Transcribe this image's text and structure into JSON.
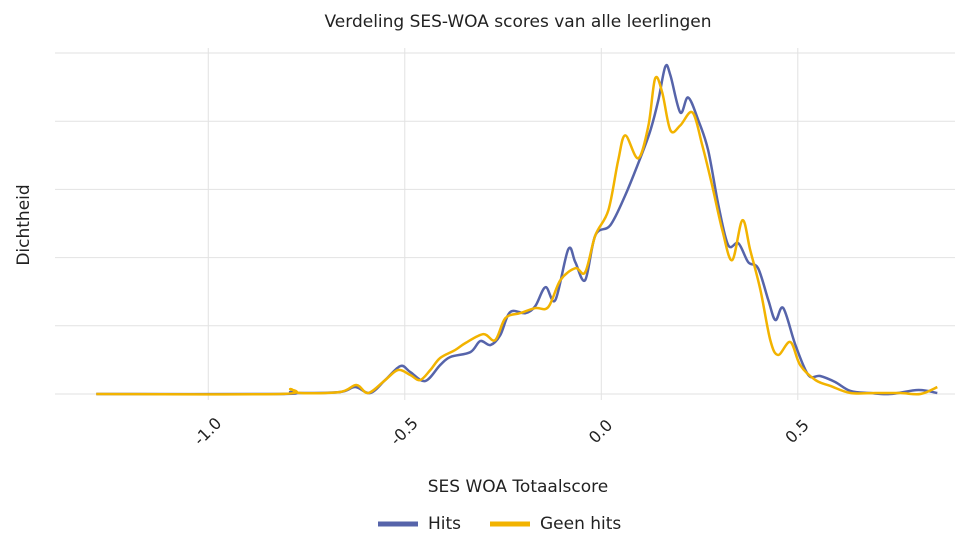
{
  "chart_data": {
    "type": "line",
    "title": "Verdeling SES-WOA scores van alle leerlingen",
    "x_label": "SES WOA Totaalscore",
    "y_label": "Dichtheid",
    "xlim": [
      -1.39,
      0.9
    ],
    "xticks": [
      {
        "value": -1.0,
        "label": "-1.0"
      },
      -0.5,
      {
        "value": 0.0,
        "label": "0.0"
      },
      0.5
    ],
    "ylim": [
      0,
      2.5
    ],
    "yticks": [
      0,
      0.5,
      1,
      1.5,
      2,
      2.5
    ],
    "grid": true,
    "legend": "bottom",
    "series": [
      {
        "name": "Hits",
        "color": "#5664aa",
        "x": [
          -1.285,
          -0.817,
          -0.791,
          -0.766,
          -0.664,
          -0.626,
          -0.588,
          -0.55,
          -0.511,
          -0.486,
          -0.448,
          -0.41,
          -0.384,
          -0.333,
          -0.308,
          -0.282,
          -0.257,
          -0.232,
          -0.193,
          -0.168,
          -0.142,
          -0.117,
          -0.084,
          -0.066,
          -0.041,
          -0.015,
          0.023,
          0.061,
          0.099,
          0.125,
          0.145,
          0.163,
          0.176,
          0.201,
          0.221,
          0.247,
          0.272,
          0.298,
          0.323,
          0.349,
          0.374,
          0.399,
          0.425,
          0.443,
          0.463,
          0.494,
          0.527,
          0.557,
          0.595,
          0.634,
          0.684,
          0.735,
          0.807,
          0.855
        ],
        "values": [
          0,
          0,
          0.015,
          0.007,
          0.015,
          0.051,
          0.007,
          0.102,
          0.205,
          0.161,
          0.095,
          0.212,
          0.271,
          0.307,
          0.388,
          0.359,
          0.432,
          0.6,
          0.593,
          0.644,
          0.783,
          0.688,
          1.061,
          0.966,
          0.835,
          1.164,
          1.237,
          1.457,
          1.728,
          1.933,
          2.152,
          2.401,
          2.335,
          2.064,
          2.174,
          2.006,
          1.786,
          1.384,
          1.091,
          1.105,
          0.966,
          0.922,
          0.688,
          0.542,
          0.63,
          0.359,
          0.139,
          0.132,
          0.088,
          0.022,
          0.007,
          0,
          0.029,
          0.007
        ]
      },
      {
        "name": "Geen hits",
        "color": "#f2b300",
        "x": [
          -1.285,
          -0.817,
          -0.791,
          -0.766,
          -0.664,
          -0.623,
          -0.593,
          -0.55,
          -0.517,
          -0.486,
          -0.461,
          -0.435,
          -0.41,
          -0.372,
          -0.346,
          -0.3,
          -0.27,
          -0.244,
          -0.206,
          -0.168,
          -0.135,
          -0.104,
          -0.066,
          -0.041,
          -0.015,
          0.018,
          0.043,
          0.061,
          0.094,
          0.12,
          0.137,
          0.155,
          0.176,
          0.201,
          0.232,
          0.257,
          0.282,
          0.308,
          0.333,
          0.359,
          0.379,
          0.405,
          0.43,
          0.45,
          0.481,
          0.506,
          0.545,
          0.583,
          0.634,
          0.697,
          0.761,
          0.812,
          0.855
        ],
        "values": [
          0,
          0,
          0.037,
          0.007,
          0.015,
          0.066,
          0.007,
          0.102,
          0.176,
          0.139,
          0.102,
          0.176,
          0.264,
          0.322,
          0.373,
          0.439,
          0.395,
          0.556,
          0.593,
          0.63,
          0.637,
          0.835,
          0.922,
          0.893,
          1.164,
          1.347,
          1.713,
          1.896,
          1.728,
          1.969,
          2.313,
          2.211,
          1.933,
          1.969,
          2.064,
          1.823,
          1.53,
          1.201,
          0.981,
          1.274,
          1.054,
          0.761,
          0.395,
          0.286,
          0.381,
          0.212,
          0.102,
          0.059,
          0.007,
          0.007,
          0.007,
          0,
          0.051
        ]
      }
    ]
  }
}
